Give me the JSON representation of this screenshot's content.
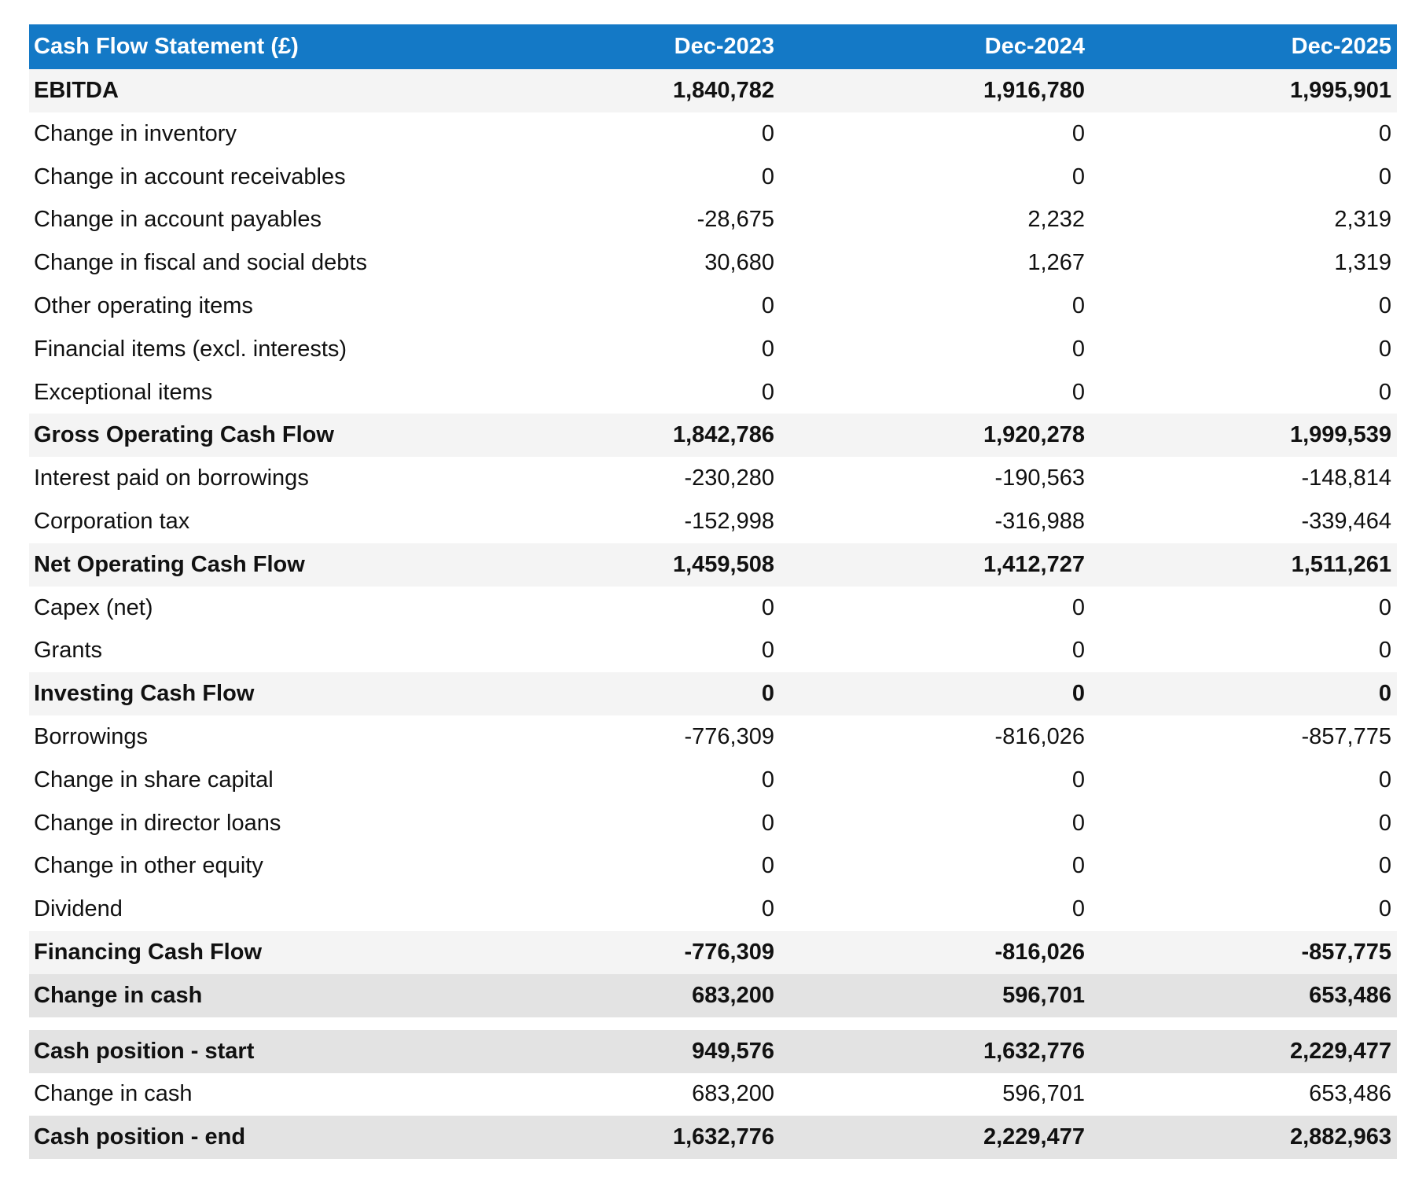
{
  "table": {
    "header": [
      "Cash Flow Statement (£)",
      "Dec-2023",
      "Dec-2024",
      "Dec-2025"
    ],
    "rows": [
      [
        "EBITDA",
        "1,840,782",
        "1,916,780",
        "1,995,901"
      ],
      [
        "Change in inventory",
        "0",
        "0",
        "0"
      ],
      [
        "Change in account receivables",
        "0",
        "0",
        "0"
      ],
      [
        "Change in account payables",
        "-28,675",
        "2,232",
        "2,319"
      ],
      [
        "Change in fiscal and social debts",
        "30,680",
        "1,267",
        "1,319"
      ],
      [
        "Other operating items",
        "0",
        "0",
        "0"
      ],
      [
        "Financial items (excl. interests)",
        "0",
        "0",
        "0"
      ],
      [
        "Exceptional items",
        "0",
        "0",
        "0"
      ],
      [
        "Gross Operating Cash Flow",
        "1,842,786",
        "1,920,278",
        "1,999,539"
      ],
      [
        "Interest paid on borrowings",
        "-230,280",
        "-190,563",
        "-148,814"
      ],
      [
        "Corporation tax",
        "-152,998",
        "-316,988",
        "-339,464"
      ],
      [
        "Net Operating Cash Flow",
        "1,459,508",
        "1,412,727",
        "1,511,261"
      ],
      [
        "Capex (net)",
        "0",
        "0",
        "0"
      ],
      [
        "Grants",
        "0",
        "0",
        "0"
      ],
      [
        "Investing Cash Flow",
        "0",
        "0",
        "0"
      ],
      [
        "Borrowings",
        "-776,309",
        "-816,026",
        "-857,775"
      ],
      [
        "Change in share capital",
        "0",
        "0",
        "0"
      ],
      [
        "Change in director loans",
        "0",
        "0",
        "0"
      ],
      [
        "Change in other equity",
        "0",
        "0",
        "0"
      ],
      [
        "Dividend",
        "0",
        "0",
        "0"
      ],
      [
        "Financing Cash Flow",
        "-776,309",
        "-816,026",
        "-857,775"
      ],
      [
        "Change in cash",
        "683,200",
        "596,701",
        "653,486"
      ],
      [
        "Cash position - start",
        "949,576",
        "1,632,776",
        "2,229,477"
      ],
      [
        "Change in cash",
        "683,200",
        "596,701",
        "653,486"
      ],
      [
        "Cash position - end",
        "1,632,776",
        "2,229,477",
        "2,882,963"
      ]
    ]
  }
}
